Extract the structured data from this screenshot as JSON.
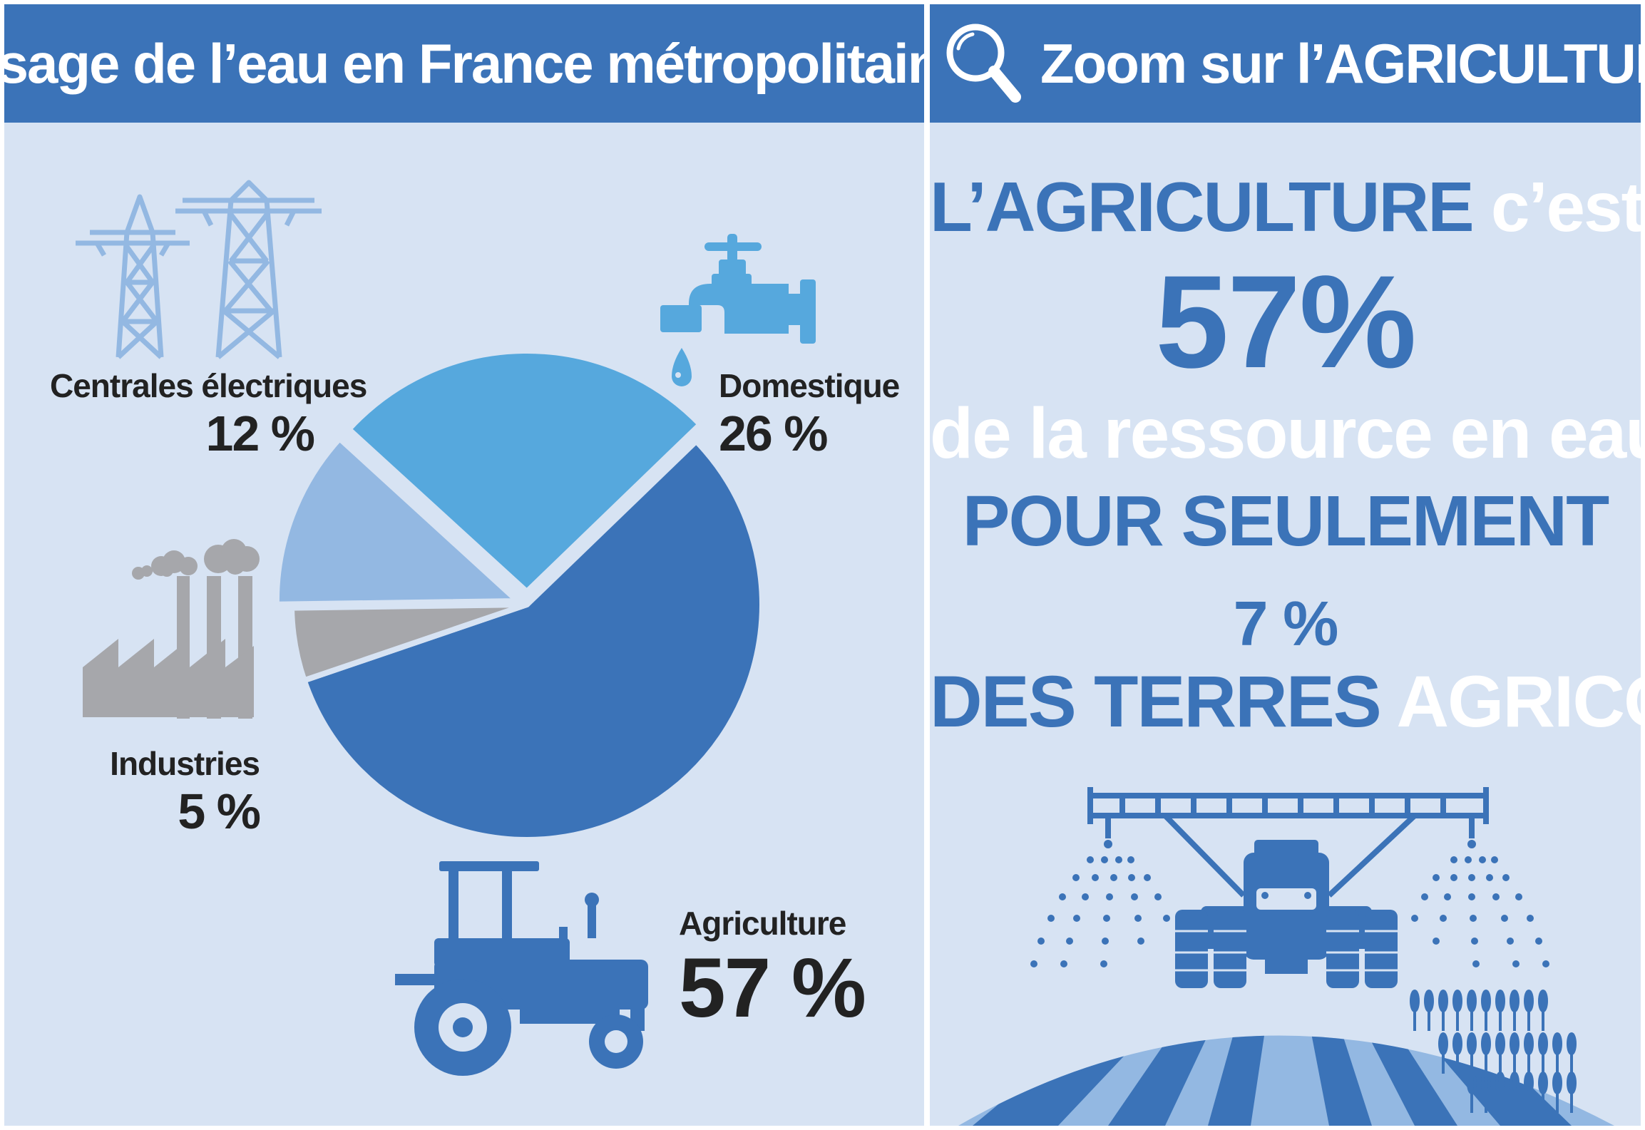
{
  "left_panel": {
    "title": "Usage de l’eau en France métropolitaine"
  },
  "right_panel": {
    "title": "Zoom sur l’AGRICULTURE",
    "icon": "magnifier-icon",
    "line1_a": "L’AGRICULTURE",
    "line1_b": "c’est",
    "line2": "57%",
    "line3": "de la ressource en eau",
    "line4": "POUR SEULEMENT",
    "line5": "7 %",
    "line6_a": "DES TERRES",
    "line6_b": "AGRICOLES"
  },
  "chart_data": {
    "type": "pie",
    "title": "Usage de l’eau en France métropolitaine",
    "unit": "%",
    "slices": [
      {
        "key": "agri",
        "label": "Agriculture",
        "value": 57,
        "value_label": "57 %",
        "color": "#3b73b8",
        "icon": "tractor-icon"
      },
      {
        "key": "ind",
        "label": "Industries",
        "value": 5,
        "value_label": "5 %",
        "color": "#a6a7ab",
        "icon": "factory-icon"
      },
      {
        "key": "elec",
        "label": "Centrales électriques",
        "value": 12,
        "value_label": "12 %",
        "color": "#93b8e2",
        "icon": "pylon-icon"
      },
      {
        "key": "dom",
        "label": "Domestique",
        "value": 26,
        "value_label": "26 %",
        "color": "#56a8dd",
        "icon": "faucet-icon"
      }
    ]
  },
  "colors": {
    "header": "#3b73b8",
    "background": "#d7e3f3",
    "accent_blue": "#3b73b8",
    "light_blue": "#93b8e2",
    "sky_blue": "#56a8dd",
    "grey": "#a6a7ab",
    "text_dark": "#222222"
  }
}
